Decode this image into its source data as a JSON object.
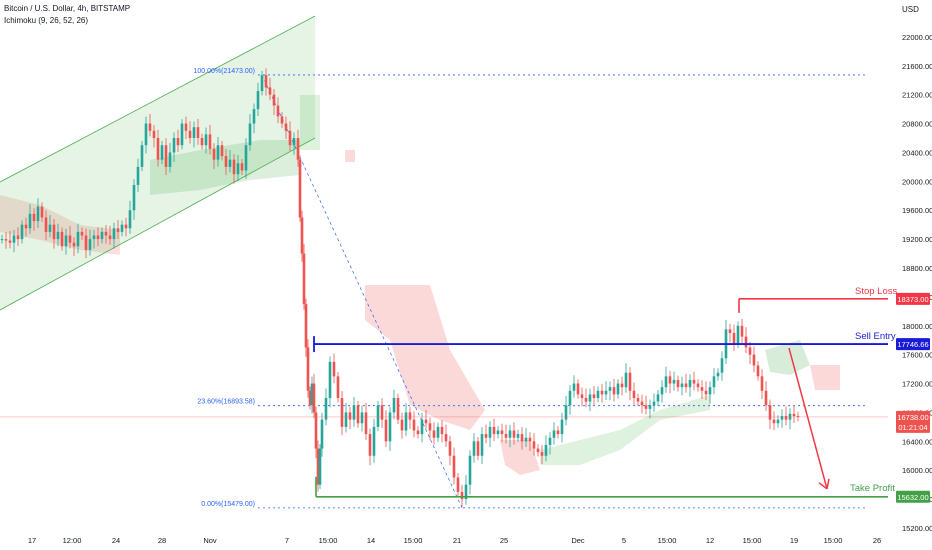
{
  "header": {
    "title": "Bitcoin / U.S. Dollar, 4h, BITSTAMP",
    "indicator": "Ichimoku (9, 26, 52, 26)"
  },
  "colors": {
    "up": "#26a69a",
    "down": "#ef5350",
    "channel": "#4caf50",
    "sell": "#1a1ad9",
    "stop": "#f23645",
    "target": "#43a047",
    "fib": "#2962ff"
  },
  "chart_data": {
    "type": "candlestick",
    "ylabel": "USD",
    "ylim": [
      15200,
      22400
    ],
    "yticks": [
      22000,
      21600,
      21200,
      20800,
      20400,
      20000,
      19600,
      19200,
      18800,
      18400,
      18000,
      17600,
      17200,
      16800,
      16400,
      16000,
      15600,
      15200
    ],
    "ytick_labels": [
      "22000.00",
      "21600.00",
      "21200.00",
      "20800.00",
      "20400.00",
      "20000.00",
      "19600.00",
      "19200.00",
      "18800.00",
      "18400.00",
      "18000.00",
      "17600.00",
      "17200.00",
      "16800.00",
      "16400.00",
      "16000.00",
      "15600.00",
      "15200.00"
    ],
    "xticks": [
      "17",
      "12:00",
      "24",
      "28",
      "Nov",
      "7",
      "15:00",
      "14",
      "15:00",
      "21",
      "25",
      "Dec",
      "5",
      "15:00",
      "12",
      "15:00",
      "19",
      "15:00",
      "26"
    ],
    "fib_levels": [
      {
        "label": "100.00%(21473.00)",
        "price": 21473
      },
      {
        "label": "23.60%(16893.58)",
        "price": 16893.58
      },
      {
        "label": "0.00%(15479.00)",
        "price": 15479
      }
    ],
    "levels": {
      "stop_loss": {
        "label": "Stop Loss",
        "price": 18373,
        "tag": "18373.00"
      },
      "sell_entry": {
        "label": "Sell Entry",
        "price": 17746.66,
        "tag": "17746.66"
      },
      "take_profit": {
        "label": "Take Profit",
        "price": 15632,
        "tag": "15632.00"
      }
    },
    "current": {
      "tag": "16738.00",
      "countdown": "01:21:04",
      "price": 16738
    },
    "candles_path": [
      [
        0,
        19200
      ],
      [
        4,
        19180
      ],
      [
        8,
        19150
      ],
      [
        12,
        19250
      ],
      [
        16,
        19200
      ],
      [
        20,
        19400
      ],
      [
        24,
        19350
      ],
      [
        28,
        19550
      ],
      [
        32,
        19450
      ],
      [
        36,
        19650
      ],
      [
        40,
        19500
      ],
      [
        44,
        19300
      ],
      [
        48,
        19400
      ],
      [
        52,
        19200
      ],
      [
        56,
        19300
      ],
      [
        60,
        19100
      ],
      [
        64,
        19250
      ],
      [
        68,
        19150
      ],
      [
        72,
        19100
      ],
      [
        76,
        19300
      ],
      [
        80,
        19250
      ],
      [
        84,
        19050
      ],
      [
        88,
        19200
      ],
      [
        92,
        19250
      ],
      [
        96,
        19200
      ],
      [
        100,
        19300
      ],
      [
        104,
        19250
      ],
      [
        108,
        19200
      ],
      [
        112,
        19350
      ],
      [
        116,
        19300
      ],
      [
        120,
        19400
      ],
      [
        124,
        19350
      ],
      [
        128,
        19600
      ],
      [
        132,
        19950
      ],
      [
        136,
        20200
      ],
      [
        140,
        20500
      ],
      [
        144,
        20800
      ],
      [
        148,
        20700
      ],
      [
        152,
        20600
      ],
      [
        156,
        20300
      ],
      [
        160,
        20500
      ],
      [
        164,
        20200
      ],
      [
        168,
        20400
      ],
      [
        172,
        20600
      ],
      [
        176,
        20500
      ],
      [
        180,
        20800
      ],
      [
        184,
        20700
      ],
      [
        188,
        20600
      ],
      [
        192,
        20750
      ],
      [
        196,
        20600
      ],
      [
        200,
        20500
      ],
      [
        204,
        20650
      ],
      [
        208,
        20450
      ],
      [
        212,
        20300
      ],
      [
        216,
        20500
      ],
      [
        220,
        20350
      ],
      [
        224,
        20200
      ],
      [
        228,
        20300
      ],
      [
        232,
        20100
      ],
      [
        236,
        20250
      ],
      [
        240,
        20150
      ],
      [
        244,
        20500
      ],
      [
        248,
        20800
      ],
      [
        252,
        21000
      ],
      [
        256,
        21250
      ],
      [
        260,
        21470
      ],
      [
        264,
        21300
      ],
      [
        268,
        21200
      ],
      [
        272,
        21050
      ],
      [
        276,
        20900
      ],
      [
        280,
        20800
      ],
      [
        284,
        20700
      ],
      [
        288,
        20500
      ],
      [
        292,
        20600
      ],
      [
        296,
        20300
      ],
      [
        298,
        19500
      ],
      [
        300,
        19000
      ],
      [
        302,
        18300
      ],
      [
        304,
        17700
      ],
      [
        306,
        17100
      ],
      [
        308,
        16900
      ],
      [
        310,
        17200
      ],
      [
        312,
        16800
      ],
      [
        314,
        16300
      ],
      [
        316,
        15800
      ],
      [
        318,
        16300
      ],
      [
        320,
        16700
      ],
      [
        324,
        17000
      ],
      [
        328,
        17500
      ],
      [
        332,
        17300
      ],
      [
        336,
        17000
      ],
      [
        340,
        16600
      ],
      [
        344,
        16800
      ],
      [
        348,
        16700
      ],
      [
        352,
        16900
      ],
      [
        356,
        16650
      ],
      [
        360,
        16800
      ],
      [
        364,
        16500
      ],
      [
        368,
        16200
      ],
      [
        372,
        16600
      ],
      [
        376,
        16900
      ],
      [
        380,
        16700
      ],
      [
        384,
        16400
      ],
      [
        388,
        16800
      ],
      [
        392,
        17000
      ],
      [
        396,
        16700
      ],
      [
        400,
        16550
      ],
      [
        404,
        16800
      ],
      [
        408,
        16700
      ],
      [
        412,
        16550
      ],
      [
        416,
        16500
      ],
      [
        420,
        16700
      ],
      [
        424,
        16650
      ],
      [
        428,
        16550
      ],
      [
        432,
        16450
      ],
      [
        436,
        16600
      ],
      [
        440,
        16500
      ],
      [
        444,
        16400
      ],
      [
        448,
        16200
      ],
      [
        452,
        15900
      ],
      [
        456,
        15700
      ],
      [
        460,
        15600
      ],
      [
        464,
        15800
      ],
      [
        468,
        16200
      ],
      [
        472,
        16400
      ],
      [
        476,
        16200
      ],
      [
        480,
        16500
      ],
      [
        484,
        16450
      ],
      [
        488,
        16600
      ],
      [
        492,
        16500
      ],
      [
        496,
        16550
      ],
      [
        500,
        16500
      ],
      [
        504,
        16450
      ],
      [
        508,
        16550
      ],
      [
        512,
        16450
      ],
      [
        516,
        16500
      ],
      [
        520,
        16400
      ],
      [
        524,
        16450
      ],
      [
        528,
        16400
      ],
      [
        532,
        16300
      ],
      [
        536,
        16250
      ],
      [
        540,
        16200
      ],
      [
        544,
        16350
      ],
      [
        548,
        16450
      ],
      [
        552,
        16550
      ],
      [
        556,
        16500
      ],
      [
        560,
        16700
      ],
      [
        564,
        16900
      ],
      [
        568,
        17100
      ],
      [
        572,
        17200
      ],
      [
        576,
        17050
      ],
      [
        580,
        17000
      ],
      [
        584,
        16950
      ],
      [
        588,
        17050
      ],
      [
        592,
        17000
      ],
      [
        596,
        17100
      ],
      [
        600,
        17050
      ],
      [
        604,
        17100
      ],
      [
        608,
        17150
      ],
      [
        612,
        17050
      ],
      [
        616,
        17200
      ],
      [
        620,
        17150
      ],
      [
        624,
        17350
      ],
      [
        628,
        17100
      ],
      [
        632,
        17000
      ],
      [
        636,
        16950
      ],
      [
        640,
        16900
      ],
      [
        644,
        16850
      ],
      [
        648,
        16900
      ],
      [
        652,
        16950
      ],
      [
        656,
        17050
      ],
      [
        660,
        17150
      ],
      [
        664,
        17300
      ],
      [
        668,
        17200
      ],
      [
        672,
        17250
      ],
      [
        676,
        17150
      ],
      [
        680,
        17200
      ],
      [
        684,
        17150
      ],
      [
        688,
        17250
      ],
      [
        692,
        17200
      ],
      [
        696,
        17150
      ],
      [
        700,
        17100
      ],
      [
        704,
        17050
      ],
      [
        708,
        17150
      ],
      [
        712,
        17300
      ],
      [
        716,
        17350
      ],
      [
        720,
        17550
      ],
      [
        724,
        17950
      ],
      [
        728,
        17900
      ],
      [
        732,
        17750
      ],
      [
        736,
        18000
      ],
      [
        740,
        17850
      ],
      [
        744,
        17700
      ],
      [
        748,
        17600
      ],
      [
        752,
        17450
      ],
      [
        756,
        17300
      ],
      [
        760,
        17100
      ],
      [
        764,
        16900
      ],
      [
        768,
        16700
      ],
      [
        772,
        16650
      ],
      [
        776,
        16700
      ],
      [
        780,
        16750
      ],
      [
        784,
        16700
      ],
      [
        788,
        16780
      ],
      [
        792,
        16750
      ],
      [
        796,
        16738
      ]
    ]
  }
}
